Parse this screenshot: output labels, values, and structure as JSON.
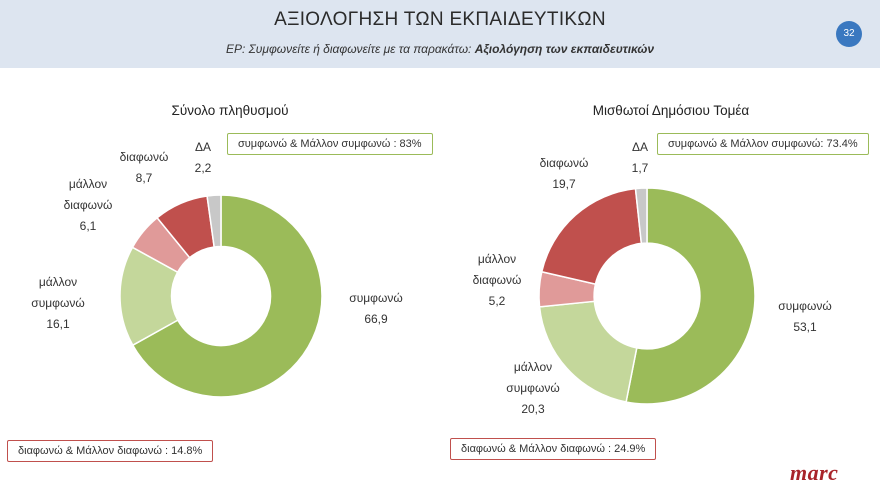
{
  "header": {
    "title": "ΑΞΙΟΛΟΓΗΣΗ ΤΩΝ ΕΚΠΑΙΔΕΥΤΙΚΩΝ",
    "subtitle_prefix": "ΕΡ:  Συμφωνείτε ή διαφωνείτε με τα παρακάτω:",
    "subtitle_bold": "Αξιολόγηση των εκπαιδευτικών",
    "page_number": "32"
  },
  "logo": "marc",
  "colors": {
    "header_bg": "#dde5f0",
    "agree": "#9bbb59",
    "rather_agree": "#c4d79b",
    "rather_disagree": "#e09a99",
    "disagree": "#c0504d",
    "dk": "#c8c8c8"
  },
  "chart_data": [
    {
      "type": "pie",
      "title": "Σύνολο πληθυσμού",
      "categories": [
        "συμφωνώ",
        "μάλλον συμφωνώ",
        "μάλλον διαφωνώ",
        "διαφωνώ",
        "ΔΑ"
      ],
      "values": [
        66.9,
        16.1,
        6.1,
        8.7,
        2.2
      ],
      "value_labels": [
        "66,9",
        "16,1",
        "6,1",
        "8,7",
        "2,2"
      ],
      "agree_box": "συμφωνώ & Μάλλον συμφωνώ : 83%",
      "disagree_box": "διαφωνώ & Μάλλον διαφωνώ : 14.8%"
    },
    {
      "type": "pie",
      "title": "Μισθωτοί Δημόσιου Τομέα",
      "categories": [
        "συμφωνώ",
        "μάλλον συμφωνώ",
        "μάλλον διαφωνώ",
        "διαφωνώ",
        "ΔΑ"
      ],
      "values": [
        53.1,
        20.3,
        5.2,
        19.7,
        1.7
      ],
      "value_labels": [
        "53,1",
        "20,3",
        "5,2",
        "19,7",
        "1,7"
      ],
      "agree_box": "συμφωνώ & Μάλλον συμφωνώ: 73.4%",
      "disagree_box": "διαφωνώ & Μάλλον διαφωνώ : 24.9%"
    }
  ]
}
